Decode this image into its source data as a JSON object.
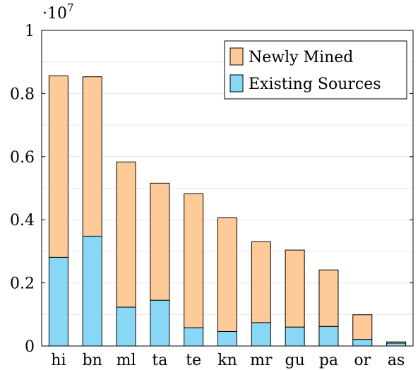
{
  "chart_data": {
    "type": "bar",
    "stacked": true,
    "categories": [
      "hi",
      "bn",
      "ml",
      "ta",
      "te",
      "kn",
      "mr",
      "gu",
      "pa",
      "or",
      "as"
    ],
    "series": [
      {
        "name": "Existing Sources",
        "color": "#87d7f5",
        "values": [
          0.281,
          0.348,
          0.123,
          0.145,
          0.058,
          0.046,
          0.074,
          0.06,
          0.062,
          0.021,
          0.009
        ]
      },
      {
        "name": "Newly Mined",
        "color": "#fdca98",
        "values": [
          0.575,
          0.505,
          0.46,
          0.371,
          0.424,
          0.36,
          0.256,
          0.244,
          0.179,
          0.078,
          0.004
        ]
      }
    ],
    "ylim": [
      0,
      1
    ],
    "yticks": [
      0,
      0.2,
      0.4,
      0.6,
      0.8,
      1
    ],
    "ytick_labels": [
      "0",
      "0.2",
      "0.4",
      "0.6",
      "0.8",
      "1"
    ],
    "y_multiplier_base": "·10",
    "y_multiplier_exp": "7",
    "grid": "horizontal",
    "legend_position": "top-right",
    "legend_order": [
      "Newly Mined",
      "Existing Sources"
    ]
  }
}
